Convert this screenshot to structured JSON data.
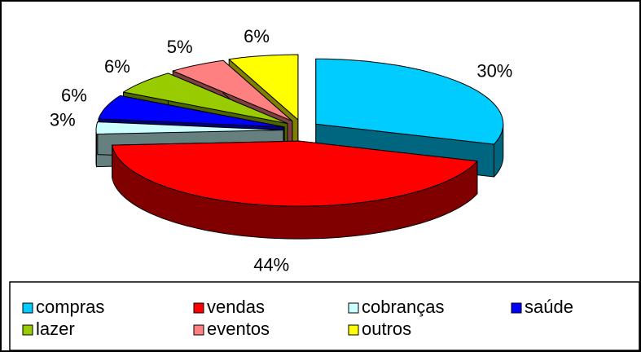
{
  "chart_data": {
    "type": "pie",
    "categories": [
      "compras",
      "vendas",
      "cobranças",
      "saúde",
      "lazer",
      "eventos",
      "outros"
    ],
    "values": [
      30,
      44,
      3,
      6,
      6,
      5,
      6
    ],
    "value_labels": [
      "30%",
      "44%",
      "3%",
      "6%",
      "6%",
      "5%",
      "6%"
    ],
    "colors": [
      "#00ccff",
      "#ff0000",
      "#ccffff",
      "#0000ff",
      "#99cc00",
      "#ff8080",
      "#ffff00"
    ],
    "legend": "bottom"
  }
}
